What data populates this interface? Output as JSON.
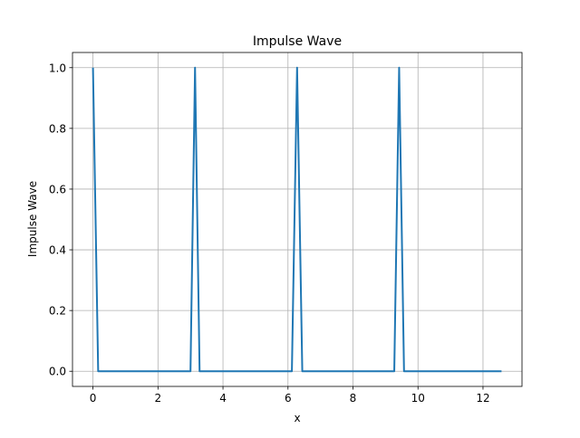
{
  "chart_data": {
    "type": "line",
    "title": "Impulse Wave",
    "xlabel": "x",
    "ylabel": "Impulse Wave",
    "xlim": [
      -0.63,
      13.2
    ],
    "ylim": [
      -0.05,
      1.05
    ],
    "x_ticks": [
      0,
      2,
      4,
      6,
      8,
      10,
      12
    ],
    "x_tick_labels": [
      "0",
      "2",
      "4",
      "6",
      "8",
      "10",
      "12"
    ],
    "y_ticks": [
      0.0,
      0.2,
      0.4,
      0.6,
      0.8,
      1.0
    ],
    "y_tick_labels": [
      "0.0",
      "0.2",
      "0.4",
      "0.6",
      "0.8",
      "1.0"
    ],
    "grid": true,
    "line_color": "#1f77b4",
    "grid_color": "#b0b0b0",
    "series": [
      {
        "x": [
          0,
          0.16,
          3.0,
          3.14,
          3.28,
          6.12,
          6.28,
          6.44,
          9.27,
          9.42,
          9.57,
          12.57
        ],
        "values": [
          1,
          0,
          0,
          1,
          0,
          0,
          1,
          0,
          0,
          1,
          0,
          0
        ]
      }
    ]
  }
}
